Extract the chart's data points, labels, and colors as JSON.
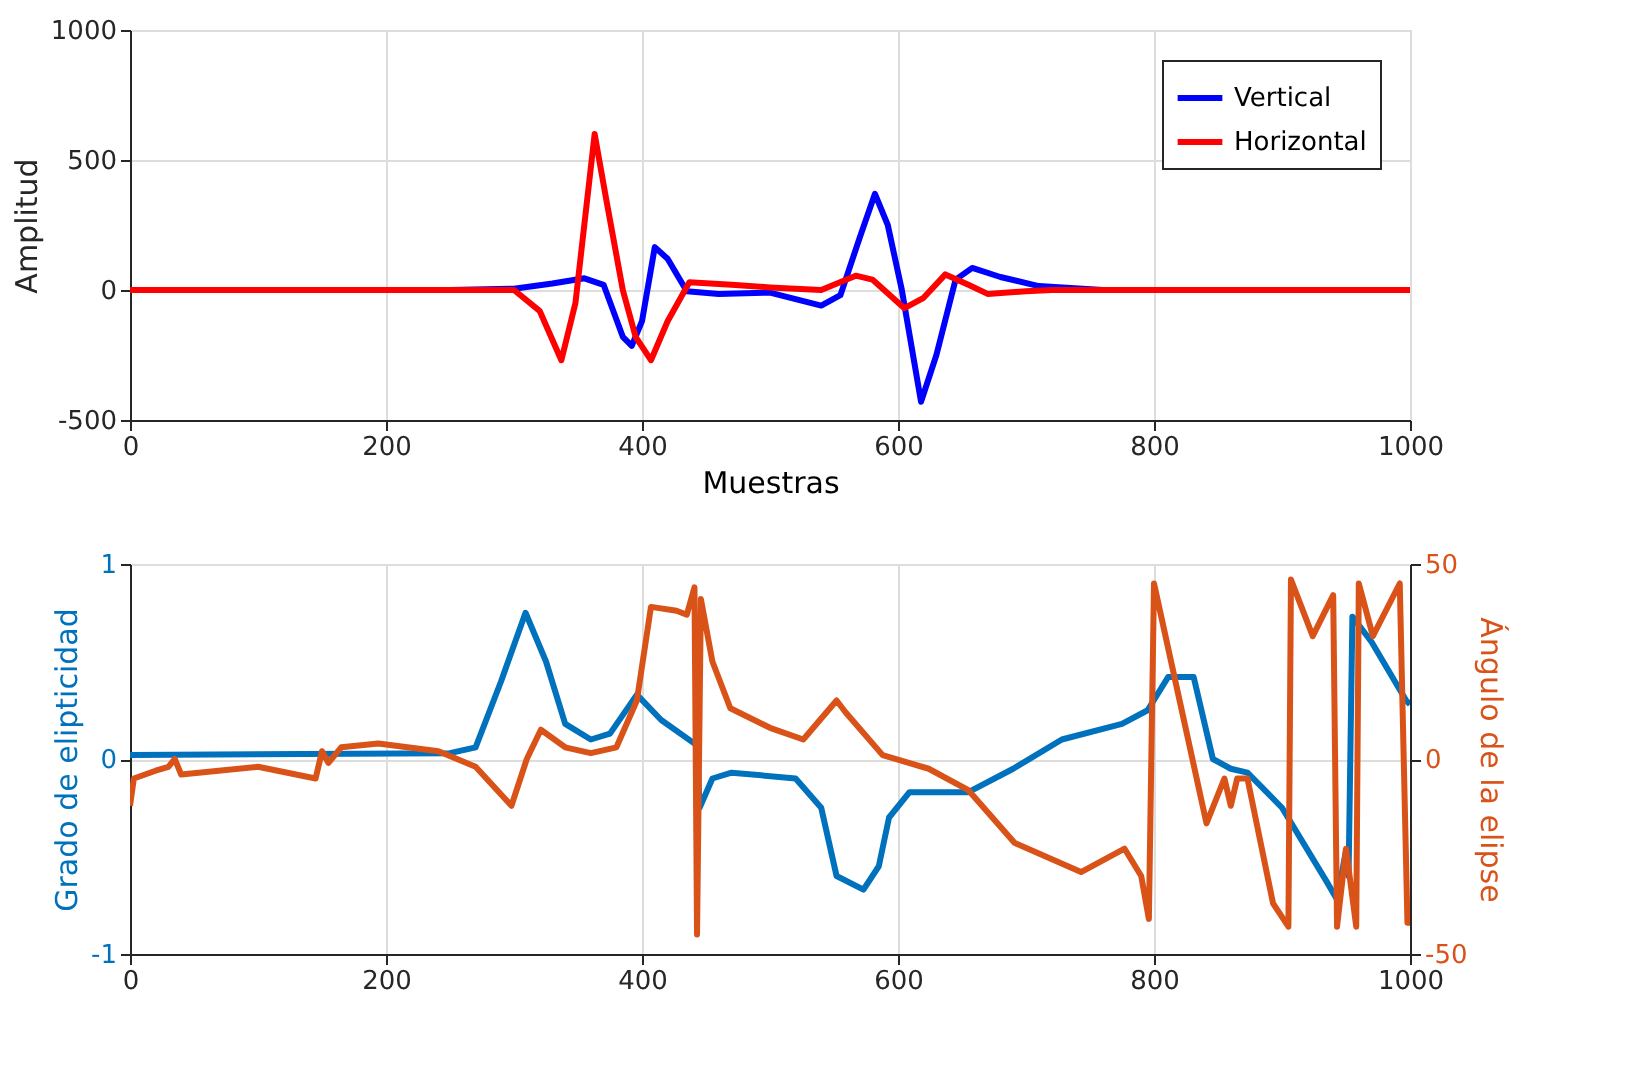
{
  "chart_data": [
    {
      "type": "line",
      "xlabel": "Muestras",
      "ylabel": "Amplitud",
      "xlim": [
        0,
        1000
      ],
      "xticks": [
        0,
        200,
        400,
        600,
        800,
        1000
      ],
      "ylim": [
        -500,
        1000
      ],
      "yticks": [
        -500,
        0,
        500,
        1000
      ],
      "grid": true,
      "legend": "top right",
      "line_style": "solid",
      "series": [
        {
          "name": "Vertical",
          "color": "#0000ff",
          "x": [
            0,
            250,
            300,
            330,
            355,
            370,
            385,
            392,
            400,
            410,
            420,
            435,
            460,
            500,
            520,
            540,
            555,
            570,
            582,
            592,
            603,
            618,
            630,
            645,
            658,
            680,
            710,
            760,
            1000
          ],
          "values": [
            0,
            0,
            5,
            25,
            45,
            20,
            -180,
            -215,
            -120,
            165,
            120,
            -5,
            -15,
            -10,
            -35,
            -60,
            -20,
            200,
            370,
            250,
            0,
            -430,
            -250,
            40,
            85,
            50,
            15,
            0,
            0
          ]
        },
        {
          "name": "Horizontal",
          "color": "#ff0000",
          "x": [
            0,
            300,
            320,
            337,
            348,
            363,
            372,
            385,
            395,
            407,
            420,
            437,
            470,
            500,
            540,
            567,
            580,
            605,
            620,
            637,
            655,
            670,
            700,
            720,
            1000
          ],
          "values": [
            0,
            0,
            -80,
            -270,
            -50,
            600,
            350,
            0,
            -180,
            -270,
            -120,
            30,
            20,
            10,
            0,
            55,
            40,
            -70,
            -30,
            60,
            20,
            -15,
            -5,
            0,
            0
          ]
        }
      ]
    },
    {
      "type": "line",
      "ylabel": "Grado de elipticidad",
      "y2label": "Ángulo de la elipse",
      "xlim": [
        0,
        1000
      ],
      "xticks": [
        0,
        200,
        400,
        600,
        800,
        1000
      ],
      "ylim": [
        -1,
        1
      ],
      "yticks": [
        -1,
        0,
        1
      ],
      "y2lim": [
        -50,
        50
      ],
      "y2ticks": [
        -50,
        0,
        50
      ],
      "grid": true,
      "line_style": "solid",
      "series": [
        {
          "color": "#0072bd",
          "x": [
            0,
            250,
            270,
            290,
            309,
            325,
            340,
            360,
            375,
            396,
            415,
            443,
            445,
            455,
            470,
            520,
            540,
            552,
            573,
            585,
            593,
            609,
            655,
            690,
            728,
            775,
            795,
            811,
            831,
            846,
            860,
            873,
            900,
            935,
            943,
            950,
            952,
            955,
            970,
            997,
            1000
          ],
          "values": [
            0.02,
            0.03,
            0.06,
            0.4,
            0.75,
            0.5,
            0.18,
            0.1,
            0.13,
            0.33,
            0.2,
            0.07,
            -0.25,
            -0.1,
            -0.07,
            -0.1,
            -0.25,
            -0.6,
            -0.67,
            -0.55,
            -0.3,
            -0.17,
            -0.17,
            -0.05,
            0.1,
            0.18,
            0.25,
            0.42,
            0.42,
            0.0,
            -0.05,
            -0.07,
            -0.25,
            -0.63,
            -0.72,
            -0.47,
            -0.6,
            0.73,
            0.6,
            0.3,
            0.28
          ]
        },
        {
          "color": "#d95319",
          "axis": "y2",
          "x": [
            0,
            3,
            20,
            30,
            35,
            40,
            100,
            145,
            150,
            155,
            165,
            194,
            241,
            270,
            298,
            310,
            321,
            340,
            360,
            380,
            396,
            407,
            427,
            435,
            441,
            443,
            446,
            455,
            469,
            500,
            526,
            552,
            559,
            588,
            624,
            655,
            691,
            743,
            777,
            790,
            796,
            800,
            820,
            841,
            855,
            860,
            865,
            873,
            893,
            905,
            907,
            924,
            940,
            943,
            950,
            958,
            960,
            971,
            992,
            998,
            1000
          ],
          "values": [
            -12,
            -5,
            -3,
            -2,
            0,
            -4,
            -2,
            -5,
            2,
            -1,
            3,
            4,
            2,
            -2,
            -12,
            0,
            7.5,
            3,
            1.5,
            3,
            15,
            39,
            38,
            37,
            44,
            -45,
            41,
            25,
            13,
            8,
            5,
            15,
            12,
            1,
            -2.5,
            -8,
            -21.5,
            -29,
            -23,
            -30,
            -41,
            45,
            15,
            -16.5,
            -5,
            -12,
            -5,
            -5,
            -37,
            -43,
            46,
            31.5,
            42,
            -43,
            -23,
            -43,
            45,
            31.5,
            45,
            -42,
            -42
          ]
        }
      ]
    }
  ]
}
